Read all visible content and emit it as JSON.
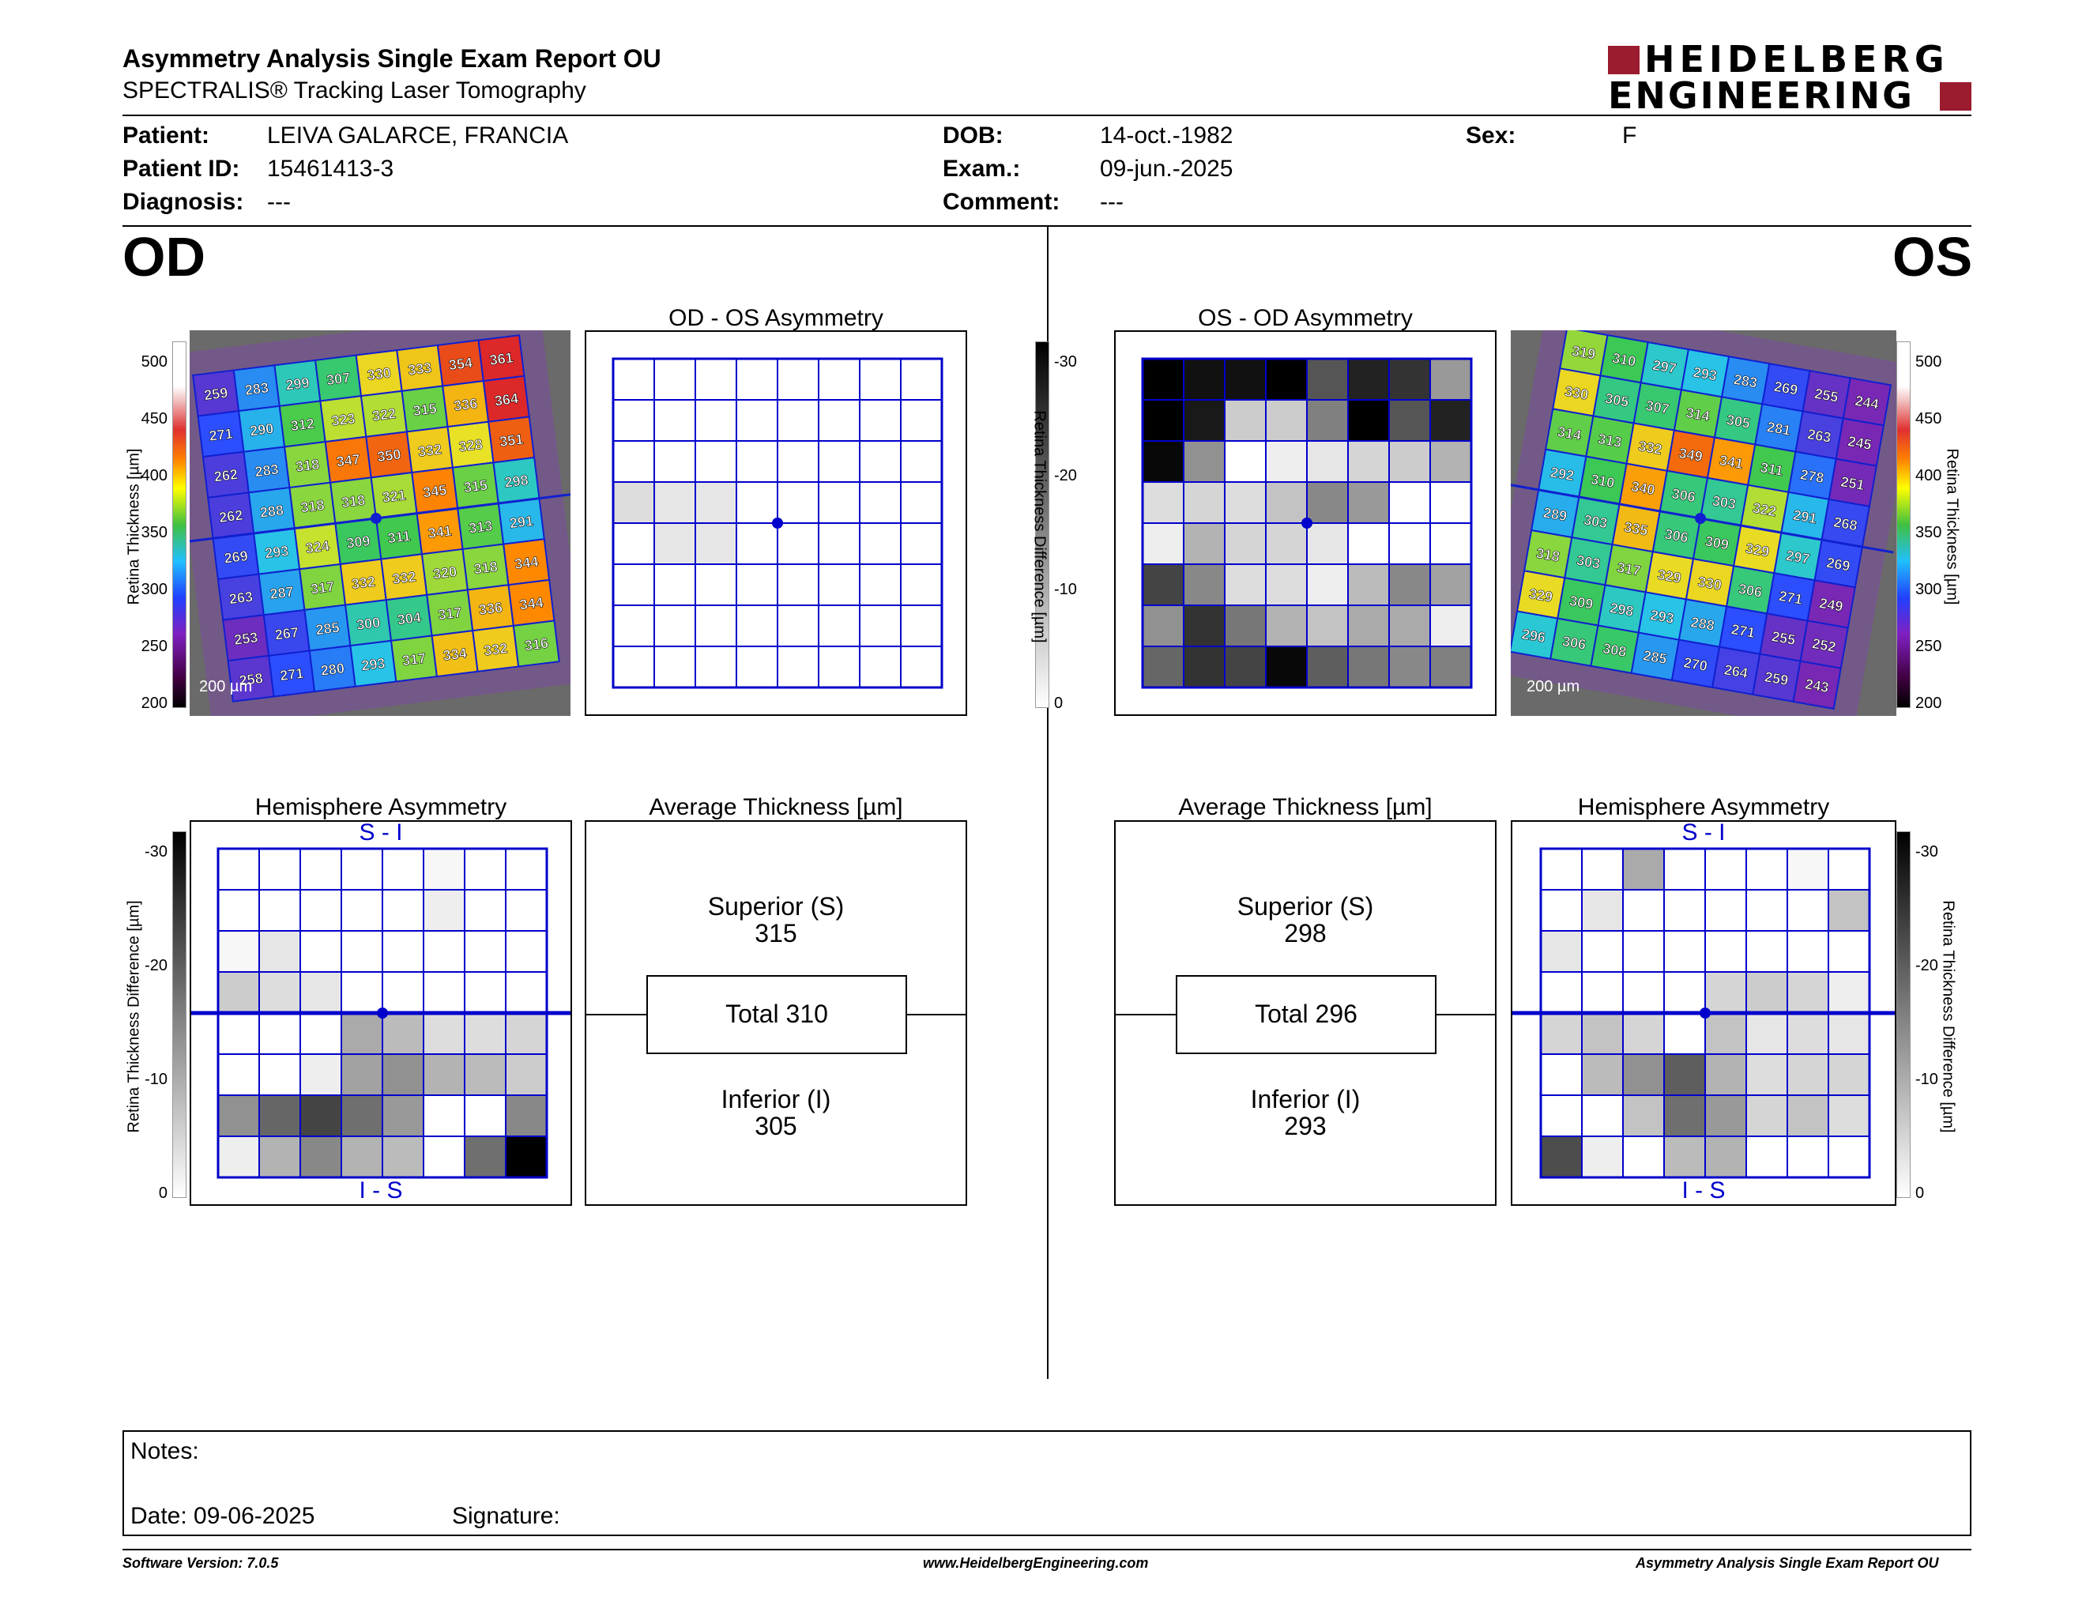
{
  "header": {
    "title": "Asymmetry Analysis Single Exam Report OU",
    "subtitle": "SPECTRALIS® Tracking Laser Tomography",
    "logo_line1": "HEIDELBERG",
    "logo_line2": "ENGINEERING",
    "brand_color": "#9b1c2e"
  },
  "patient": {
    "patient_label": "Patient:",
    "patient_value": "LEIVA GALARCE, FRANCIA",
    "id_label": "Patient ID:",
    "id_value": "15461413-3",
    "diag_label": "Diagnosis:",
    "diag_value": "---",
    "dob_label": "DOB:",
    "dob_value": "14-oct.-1982",
    "exam_label": "Exam.:",
    "exam_value": "09-jun.-2025",
    "comment_label": "Comment:",
    "comment_value": "---",
    "sex_label": "Sex:",
    "sex_value": "F"
  },
  "od": {
    "eye_label": "OD",
    "asym_title": "OD - OS Asymmetry",
    "scale_text": "200 µm",
    "thickness_axis_label": "Retina  Thickness [µm]",
    "thickness_ticks": [
      "500",
      "450",
      "400",
      "350",
      "300",
      "250",
      "200"
    ],
    "diff_axis_label": "Retina Thickness Difference [µm]",
    "diff_ticks": [
      "-30",
      "-20",
      "-10",
      "0"
    ],
    "thickness_grid": [
      [
        "259",
        "283",
        "299",
        "307",
        "330",
        "333",
        "354",
        "361"
      ],
      [
        "271",
        "290",
        "312",
        "323",
        "322",
        "315",
        "336",
        "364"
      ],
      [
        "262",
        "283",
        "318",
        "347",
        "350",
        "332",
        "328",
        "351"
      ],
      [
        "262",
        "288",
        "318",
        "318",
        "321",
        "345",
        "315",
        "298"
      ],
      [
        "269",
        "293",
        "324",
        "309",
        "311",
        "341",
        "313",
        "291"
      ],
      [
        "263",
        "287",
        "317",
        "332",
        "332",
        "320",
        "318",
        "344"
      ],
      [
        "253",
        "267",
        "285",
        "300",
        "304",
        "317",
        "336",
        "344"
      ],
      [
        "258",
        "271",
        "280",
        "293",
        "317",
        "334",
        "332",
        "316"
      ]
    ],
    "asym_grid": [
      [
        0,
        0,
        0,
        0,
        0,
        0,
        0,
        0
      ],
      [
        0,
        0,
        0,
        0,
        0,
        0,
        0,
        0
      ],
      [
        0,
        0,
        0,
        0,
        0,
        0,
        0,
        0
      ],
      [
        4,
        3,
        3,
        0,
        0,
        0,
        0,
        0
      ],
      [
        0,
        3,
        3,
        0,
        0,
        0,
        0,
        0
      ],
      [
        0,
        0,
        0,
        0,
        0,
        0,
        0,
        0
      ],
      [
        0,
        0,
        0,
        0,
        0,
        0,
        0,
        0
      ],
      [
        0,
        0,
        0,
        0,
        0,
        0,
        0,
        0
      ]
    ],
    "hemi_title": "Hemisphere Asymmetry",
    "hemi_top": "S - I",
    "hemi_bottom": "I - S",
    "hemi_grid": [
      [
        0,
        0,
        0,
        0,
        0,
        1,
        0,
        0
      ],
      [
        0,
        0,
        0,
        0,
        0,
        2,
        0,
        0
      ],
      [
        1,
        3,
        0,
        0,
        0,
        0,
        0,
        0
      ],
      [
        6,
        4,
        3,
        0,
        0,
        0,
        0,
        0
      ],
      [
        0,
        0,
        0,
        10,
        8,
        4,
        4,
        5
      ],
      [
        0,
        0,
        2,
        11,
        13,
        9,
        8,
        6
      ],
      [
        13,
        18,
        22,
        17,
        12,
        0,
        0,
        14
      ],
      [
        2,
        9,
        14,
        9,
        8,
        0,
        17,
        30
      ]
    ],
    "avg_title": "Average Thickness [µm]",
    "superior_label": "Superior (S)",
    "superior_value": "315",
    "total_text": "Total 310",
    "inferior_label": "Inferior (I)",
    "inferior_value": "305"
  },
  "os": {
    "eye_label": "OS",
    "asym_title": "OS - OD Asymmetry",
    "scale_text": "200 µm",
    "thickness_axis_label": "Retina  Thickness [µm]",
    "thickness_ticks": [
      "500",
      "450",
      "400",
      "350",
      "300",
      "250",
      "200"
    ],
    "diff_axis_label": "Retina Thickness Difference [µm]",
    "diff_ticks": [
      "-30",
      "-20",
      "-10",
      "0"
    ],
    "thickness_grid": [
      [
        "319",
        "310",
        "297",
        "293",
        "283",
        "269",
        "255",
        "244"
      ],
      [
        "330",
        "305",
        "307",
        "314",
        "305",
        "281",
        "263",
        "245"
      ],
      [
        "314",
        "313",
        "332",
        "349",
        "341",
        "311",
        "278",
        "251"
      ],
      [
        "292",
        "310",
        "340",
        "306",
        "303",
        "322",
        "291",
        "268"
      ],
      [
        "289",
        "303",
        "335",
        "306",
        "309",
        "329",
        "297",
        "269"
      ],
      [
        "318",
        "303",
        "317",
        "329",
        "330",
        "306",
        "271",
        "249"
      ],
      [
        "329",
        "309",
        "298",
        "293",
        "288",
        "271",
        "255",
        "252"
      ],
      [
        "296",
        "306",
        "308",
        "285",
        "270",
        "264",
        "259",
        "243"
      ]
    ],
    "asym_grid": [
      [
        30,
        28,
        28,
        30,
        20,
        26,
        24,
        12
      ],
      [
        30,
        27,
        6,
        6,
        15,
        30,
        20,
        26
      ],
      [
        29,
        13,
        0,
        2,
        3,
        5,
        6,
        9
      ],
      [
        4,
        5,
        4,
        7,
        14,
        12,
        0,
        0
      ],
      [
        2,
        9,
        5,
        5,
        3,
        0,
        0,
        0
      ],
      [
        22,
        14,
        4,
        4,
        2,
        8,
        14,
        11
      ],
      [
        13,
        24,
        16,
        9,
        7,
        10,
        10,
        2
      ],
      [
        18,
        24,
        22,
        29,
        19,
        16,
        14,
        15
      ]
    ],
    "hemi_title": "Hemisphere Asymmetry",
    "hemi_top": "S - I",
    "hemi_bottom": "I - S",
    "hemi_grid": [
      [
        0,
        0,
        10,
        0,
        0,
        0,
        1,
        0
      ],
      [
        0,
        3,
        0,
        0,
        0,
        0,
        0,
        7
      ],
      [
        3,
        0,
        0,
        0,
        0,
        0,
        0,
        0
      ],
      [
        0,
        0,
        0,
        0,
        5,
        6,
        5,
        2
      ],
      [
        5,
        7,
        5,
        0,
        7,
        3,
        4,
        3
      ],
      [
        0,
        8,
        13,
        19,
        9,
        4,
        5,
        5
      ],
      [
        0,
        0,
        7,
        17,
        12,
        5,
        7,
        4
      ],
      [
        21,
        2,
        0,
        8,
        9,
        0,
        0,
        0
      ]
    ],
    "avg_title": "Average Thickness [µm]",
    "superior_label": "Superior (S)",
    "superior_value": "298",
    "total_text": "Total 296",
    "inferior_label": "Inferior (I)",
    "inferior_value": "293"
  },
  "notes": {
    "notes_label": "Notes:",
    "date_label": "Date: 09-06-2025",
    "signature_label": "Signature:"
  },
  "footer": {
    "software": "Software Version: 7.0.5",
    "website": "www.HeidelbergEngineering.com",
    "report_name": "Asymmetry Analysis Single Exam Report OU"
  },
  "colors": {
    "grid_blue": "#0000cc",
    "rule_black": "#000000"
  }
}
